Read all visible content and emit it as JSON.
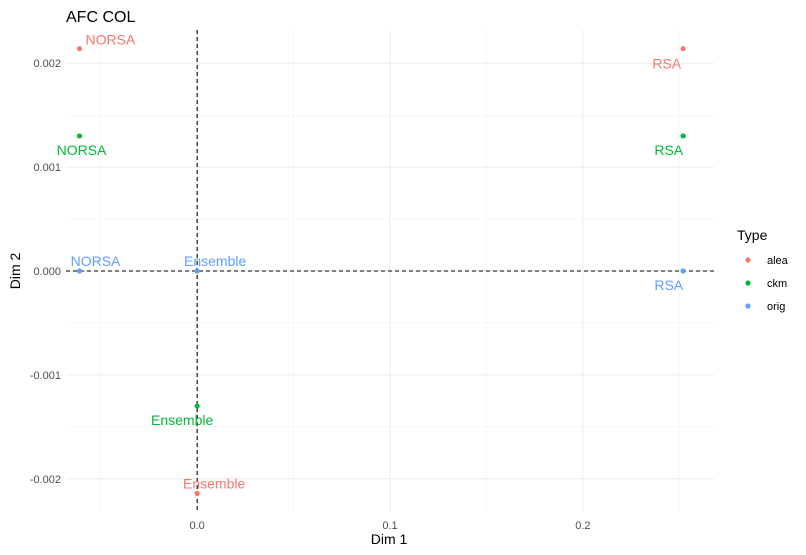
{
  "chart_data": {
    "type": "scatter",
    "title": "AFC COL",
    "xlabel": "Dim 1",
    "ylabel": "Dim 2",
    "xlim": [
      -0.068,
      0.268
    ],
    "ylim": [
      -0.00232,
      0.00232
    ],
    "x_ticks": [
      0.0,
      0.1,
      0.2
    ],
    "x_tick_labels": [
      "0.0",
      "0.1",
      "0.2"
    ],
    "y_ticks": [
      -0.002,
      -0.001,
      0.0,
      0.001,
      0.002
    ],
    "y_tick_labels": [
      "-0.002",
      "-0.001",
      "0.000",
      "0.001",
      "0.002"
    ],
    "grid": true,
    "reference_lines": {
      "x": 0,
      "y": 0,
      "style": "dashed"
    },
    "legend": {
      "title": "Type",
      "placement": "right"
    },
    "series": [
      {
        "name": "alea",
        "color": "#F8766D",
        "points": [
          {
            "label": "NORSA",
            "x": -0.061,
            "y": 0.00214
          },
          {
            "label": "RSA",
            "x": 0.252,
            "y": 0.00214
          },
          {
            "label": "Ensemble",
            "x": 0.0,
            "y": -0.00214
          }
        ]
      },
      {
        "name": "ckm",
        "color": "#00BA38",
        "points": [
          {
            "label": "NORSA",
            "x": -0.061,
            "y": 0.0013
          },
          {
            "label": "RSA",
            "x": 0.252,
            "y": 0.0013
          },
          {
            "label": "Ensemble",
            "x": 0.0,
            "y": -0.0013
          }
        ]
      },
      {
        "name": "orig",
        "color": "#619CFF",
        "points": [
          {
            "label": "NORSA",
            "x": -0.061,
            "y": 0.0
          },
          {
            "label": "RSA",
            "x": 0.252,
            "y": 0.0
          },
          {
            "label": "Ensemble",
            "x": 0.0,
            "y": 0.0
          }
        ]
      }
    ]
  }
}
